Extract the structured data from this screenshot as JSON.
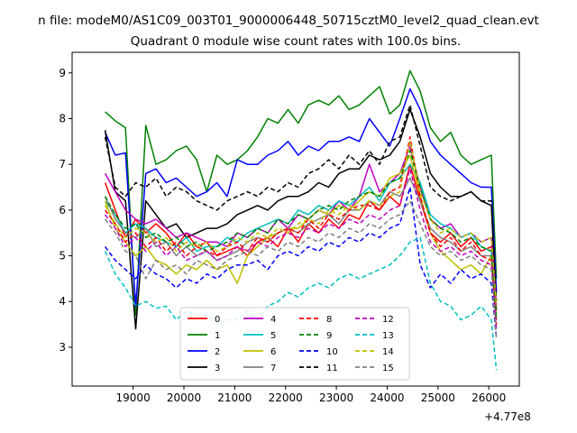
{
  "figure": {
    "suptitle": "n file: modeM0/AS1C09_003T01_9000006448_50715cztM0_level2_quad_clean.evt",
    "title": "Quadrant 0 module wise count rates with 100.0s bins.",
    "offset_label": "+4.77e8"
  },
  "chart_data": {
    "type": "line",
    "title": "Quadrant 0 module wise count rates with 100.0s bins.",
    "xlabel": "",
    "ylabel": "",
    "x_offset": 477000000,
    "xlim": [
      17800,
      26600
    ],
    "ylim": [
      2.15,
      9.45
    ],
    "xticks": [
      19000,
      20000,
      21000,
      22000,
      23000,
      24000,
      25000,
      26000
    ],
    "yticks": [
      3,
      4,
      5,
      6,
      7,
      8,
      9
    ],
    "x": [
      18450,
      18650,
      18850,
      19050,
      19250,
      19450,
      19650,
      19850,
      20050,
      20250,
      20450,
      20650,
      20850,
      21050,
      21250,
      21450,
      21650,
      21850,
      22050,
      22250,
      22450,
      22650,
      22850,
      23050,
      23250,
      23450,
      23650,
      23850,
      24050,
      24250,
      24450,
      24650,
      24850,
      25050,
      25250,
      25450,
      25650,
      25850,
      26050,
      26150
    ],
    "legend": {
      "location": "lower center",
      "ncol": 4
    },
    "series": [
      {
        "name": "0",
        "color": "#ff0000",
        "style": "solid",
        "values": [
          6.6,
          6.0,
          5.4,
          5.8,
          5.5,
          5.7,
          5.5,
          5.2,
          5.5,
          5.2,
          5.3,
          5.0,
          5.1,
          5.2,
          5.0,
          5.3,
          5.4,
          5.2,
          5.6,
          5.3,
          5.7,
          5.5,
          5.8,
          5.6,
          5.9,
          5.8,
          6.2,
          6.0,
          6.3,
          6.1,
          7.0,
          6.2,
          5.5,
          5.3,
          5.5,
          5.2,
          5.4,
          5.1,
          5.2,
          4.2
        ]
      },
      {
        "name": "1",
        "color": "#008000",
        "style": "solid",
        "values": [
          8.15,
          7.95,
          7.8,
          3.7,
          7.85,
          7.0,
          7.1,
          7.3,
          7.4,
          7.1,
          6.4,
          7.2,
          7.0,
          7.1,
          7.3,
          7.6,
          8.0,
          7.9,
          8.2,
          7.9,
          8.3,
          8.4,
          8.3,
          8.5,
          8.2,
          8.3,
          8.5,
          8.7,
          8.1,
          8.3,
          9.05,
          8.6,
          7.8,
          7.5,
          7.7,
          7.2,
          7.0,
          7.1,
          7.2,
          4.5
        ]
      },
      {
        "name": "2",
        "color": "#0000ff",
        "style": "solid",
        "values": [
          7.7,
          7.2,
          7.25,
          3.9,
          6.8,
          6.9,
          6.6,
          6.7,
          6.5,
          6.3,
          6.4,
          6.6,
          6.3,
          7.1,
          7.0,
          7.0,
          7.2,
          7.3,
          7.5,
          7.2,
          7.4,
          7.3,
          7.5,
          7.5,
          7.6,
          7.5,
          8.0,
          7.7,
          7.4,
          8.0,
          8.65,
          8.2,
          7.5,
          7.2,
          7.0,
          6.8,
          6.6,
          6.5,
          6.5,
          4.2
        ]
      },
      {
        "name": "3",
        "color": "#000000",
        "style": "solid",
        "values": [
          7.75,
          6.4,
          6.2,
          3.4,
          6.2,
          5.9,
          5.6,
          5.7,
          5.4,
          5.5,
          5.6,
          5.6,
          5.7,
          5.9,
          6.0,
          6.1,
          6.0,
          6.2,
          6.3,
          6.3,
          6.4,
          6.6,
          6.5,
          6.8,
          6.9,
          6.9,
          7.2,
          7.1,
          7.2,
          7.5,
          8.2,
          7.6,
          6.8,
          6.5,
          6.3,
          6.3,
          6.4,
          6.2,
          6.1,
          3.8
        ]
      },
      {
        "name": "4",
        "color": "#bf00bf",
        "style": "solid",
        "values": [
          6.8,
          6.4,
          6.0,
          5.8,
          5.7,
          5.8,
          5.6,
          5.4,
          5.5,
          5.4,
          5.3,
          5.3,
          5.2,
          5.5,
          5.4,
          5.6,
          5.5,
          5.8,
          5.6,
          5.9,
          5.8,
          6.0,
          5.9,
          6.2,
          6.0,
          6.3,
          7.0,
          6.4,
          6.6,
          6.8,
          7.4,
          6.5,
          5.8,
          5.6,
          5.7,
          5.4,
          5.5,
          5.3,
          5.4,
          3.9
        ]
      },
      {
        "name": "5",
        "color": "#00bfbf",
        "style": "solid",
        "values": [
          6.2,
          5.9,
          5.5,
          5.7,
          5.6,
          5.4,
          5.3,
          5.2,
          5.4,
          5.1,
          5.2,
          5.2,
          5.4,
          5.3,
          5.5,
          5.6,
          5.7,
          5.8,
          5.7,
          6.0,
          5.9,
          6.1,
          6.0,
          6.2,
          6.1,
          6.3,
          6.5,
          6.2,
          6.6,
          6.7,
          7.0,
          6.6,
          5.9,
          5.7,
          5.6,
          5.4,
          5.5,
          5.2,
          5.1,
          3.6
        ]
      },
      {
        "name": "6",
        "color": "#bfbf00",
        "style": "solid",
        "values": [
          6.2,
          5.6,
          5.3,
          5.0,
          5.2,
          4.9,
          4.8,
          4.6,
          4.8,
          4.7,
          4.9,
          4.7,
          4.8,
          4.4,
          5.0,
          5.2,
          5.4,
          5.5,
          5.6,
          5.6,
          5.8,
          6.0,
          5.9,
          6.1,
          6.0,
          6.2,
          6.4,
          6.3,
          6.7,
          6.8,
          7.2,
          6.3,
          5.5,
          5.1,
          4.9,
          4.7,
          4.8,
          4.6,
          5.0,
          3.7
        ]
      },
      {
        "name": "7",
        "color": "#808080",
        "style": "solid",
        "values": [
          6.3,
          5.8,
          5.5,
          5.4,
          5.6,
          5.2,
          5.3,
          5.0,
          5.2,
          5.0,
          5.1,
          4.9,
          5.0,
          5.1,
          5.3,
          5.4,
          5.3,
          5.5,
          5.6,
          5.5,
          5.7,
          5.8,
          5.9,
          5.7,
          6.0,
          6.0,
          6.2,
          6.1,
          6.4,
          6.3,
          6.7,
          6.2,
          5.6,
          5.4,
          5.3,
          5.1,
          5.2,
          5.0,
          5.0,
          3.6
        ]
      },
      {
        "name": "8",
        "color": "#ff0000",
        "style": "dashed",
        "values": [
          6.0,
          5.7,
          5.3,
          5.5,
          5.2,
          5.4,
          5.1,
          5.3,
          5.0,
          5.2,
          5.1,
          5.0,
          5.2,
          5.3,
          5.1,
          5.4,
          5.3,
          5.5,
          5.6,
          5.5,
          5.8,
          5.6,
          5.9,
          5.8,
          6.0,
          6.1,
          6.1,
          6.0,
          6.4,
          6.5,
          7.6,
          6.3,
          5.5,
          5.2,
          5.4,
          5.1,
          5.3,
          5.0,
          4.9,
          3.5
        ]
      },
      {
        "name": "9",
        "color": "#008000",
        "style": "dashed",
        "values": [
          6.3,
          5.9,
          5.6,
          5.7,
          5.4,
          5.5,
          5.3,
          5.4,
          5.2,
          5.3,
          5.1,
          5.2,
          5.3,
          5.5,
          5.4,
          5.6,
          5.5,
          5.8,
          5.7,
          5.9,
          5.8,
          6.0,
          6.1,
          6.0,
          6.2,
          6.3,
          6.4,
          6.3,
          6.6,
          6.7,
          7.3,
          6.5,
          5.8,
          5.6,
          5.5,
          5.3,
          5.4,
          5.2,
          5.1,
          3.6
        ]
      },
      {
        "name": "10",
        "color": "#0000ff",
        "style": "dashed",
        "values": [
          5.2,
          4.9,
          4.7,
          4.5,
          4.8,
          4.6,
          4.5,
          4.3,
          4.5,
          4.4,
          4.6,
          4.5,
          4.7,
          4.8,
          4.8,
          4.9,
          4.7,
          5.0,
          5.1,
          5.0,
          5.2,
          5.1,
          5.3,
          5.2,
          5.4,
          5.3,
          5.5,
          5.4,
          5.6,
          5.7,
          6.5,
          4.8,
          4.3,
          4.6,
          4.4,
          4.7,
          4.5,
          4.6,
          4.4,
          3.2
        ]
      },
      {
        "name": "11",
        "color": "#000000",
        "style": "dashed",
        "values": [
          7.6,
          6.5,
          6.3,
          6.6,
          6.5,
          6.7,
          6.3,
          6.5,
          6.4,
          6.2,
          6.1,
          6.0,
          6.2,
          6.3,
          6.4,
          6.3,
          6.5,
          6.4,
          6.6,
          6.5,
          6.8,
          6.9,
          7.1,
          6.9,
          7.2,
          7.0,
          7.3,
          7.0,
          7.5,
          7.6,
          8.3,
          7.4,
          6.5,
          6.3,
          6.2,
          6.3,
          6.4,
          6.2,
          6.2,
          4.0
        ]
      },
      {
        "name": "12",
        "color": "#bf00bf",
        "style": "dashed",
        "values": [
          5.9,
          5.6,
          5.2,
          5.4,
          5.1,
          5.3,
          5.0,
          5.2,
          4.9,
          5.0,
          5.1,
          4.9,
          5.0,
          5.2,
          5.1,
          5.3,
          5.2,
          5.4,
          5.5,
          5.4,
          5.6,
          5.5,
          5.7,
          5.6,
          5.8,
          5.7,
          5.9,
          5.8,
          6.0,
          6.1,
          6.9,
          6.0,
          5.3,
          5.1,
          5.2,
          5.0,
          5.1,
          4.9,
          4.8,
          3.4
        ]
      },
      {
        "name": "13",
        "color": "#00bfbf",
        "style": "dashed",
        "values": [
          5.1,
          4.6,
          4.3,
          3.9,
          4.0,
          3.85,
          3.9,
          3.6,
          3.8,
          3.7,
          3.7,
          3.5,
          3.6,
          3.6,
          3.8,
          3.6,
          3.9,
          4.0,
          4.2,
          4.1,
          4.3,
          4.4,
          4.3,
          4.5,
          4.6,
          4.5,
          4.6,
          4.7,
          4.8,
          5.0,
          5.3,
          5.4,
          4.4,
          4.0,
          3.9,
          3.6,
          3.7,
          3.9,
          3.6,
          2.5
        ]
      },
      {
        "name": "14",
        "color": "#bfbf00",
        "style": "dashed",
        "values": [
          6.1,
          5.7,
          5.4,
          5.6,
          5.5,
          5.3,
          5.4,
          5.1,
          5.3,
          5.2,
          5.3,
          5.1,
          5.2,
          5.4,
          5.3,
          5.5,
          5.4,
          5.6,
          5.5,
          5.7,
          5.8,
          5.7,
          6.0,
          5.9,
          6.1,
          6.0,
          6.2,
          6.1,
          6.3,
          6.4,
          7.5,
          6.4,
          5.8,
          5.5,
          5.6,
          5.4,
          5.5,
          5.3,
          5.4,
          3.9
        ]
      },
      {
        "name": "15",
        "color": "#808080",
        "style": "dashed",
        "values": [
          5.8,
          5.5,
          5.1,
          5.0,
          4.5,
          4.9,
          4.7,
          4.8,
          4.6,
          4.9,
          4.8,
          4.7,
          4.9,
          5.0,
          5.1,
          5.0,
          5.2,
          5.1,
          5.3,
          5.2,
          5.4,
          5.3,
          5.5,
          5.4,
          5.6,
          5.5,
          5.7,
          5.6,
          5.8,
          5.9,
          6.2,
          5.7,
          5.2,
          5.0,
          5.1,
          4.9,
          5.0,
          4.8,
          4.7,
          3.2
        ]
      }
    ]
  }
}
